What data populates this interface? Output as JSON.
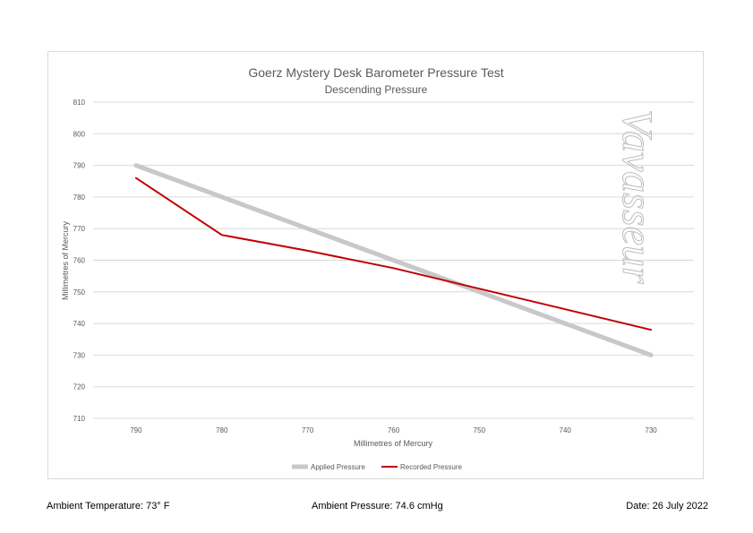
{
  "chart_data": {
    "type": "line",
    "title": "Goerz Mystery Desk Barometer Pressure Test",
    "subtitle": "Descending Pressure",
    "xlabel": "Millimetres of Mercury",
    "ylabel": "Millimetres of Mercury",
    "categories": [
      "790",
      "780",
      "770",
      "760",
      "750",
      "740",
      "730"
    ],
    "ylim": [
      710,
      810
    ],
    "yticks": [
      "710",
      "720",
      "730",
      "740",
      "750",
      "760",
      "770",
      "780",
      "790",
      "800",
      "810"
    ],
    "grid": true,
    "legend_position": "bottom",
    "series": [
      {
        "name": "Applied Pressure",
        "values": [
          790,
          780,
          770,
          760,
          750,
          740,
          730
        ],
        "color": "#c8c8c8"
      },
      {
        "name": "Recorded Pressure",
        "values": [
          786,
          768,
          763,
          757.5,
          751,
          744.5,
          738
        ],
        "color": "#c00000"
      }
    ]
  },
  "watermark": "Vavasseur",
  "footer": {
    "temperature": "Ambient Temperature: 73° F",
    "pressure": "Ambient Pressure: 74.6 cmHg",
    "date": "Date: 26 July 2022"
  }
}
